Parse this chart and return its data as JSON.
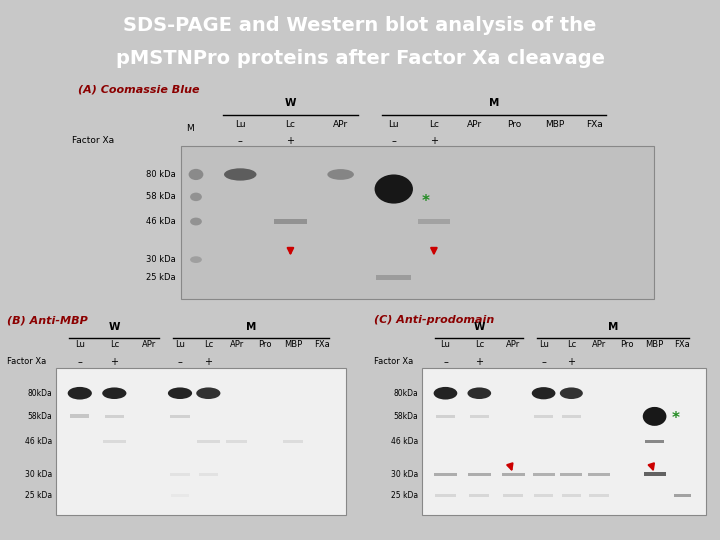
{
  "title_line1": "SDS-PAGE and Western blot analysis of the",
  "title_line2": "pMSTNPro proteins after Factor Xa cleavage",
  "title_bg": "#0d1f5c",
  "title_fg": "#ffffff",
  "slide_bg": "#c8c8c8",
  "content_bg": "#ffffff",
  "label_color": "#8b0000",
  "text_color": "#111111",
  "accent_red": "#cc0000",
  "accent_green": "#228b22",
  "section_A_label": "(A) Coomassie Blue",
  "section_B_label": "(B) Anti-MBP",
  "section_C_label": "(C) Anti-prodomain",
  "mw_labels_A": [
    [
      "80 kDa",
      0.595
    ],
    [
      "58 kDa",
      0.495
    ],
    [
      "46 kDa",
      0.385
    ],
    [
      "30 kDa",
      0.215
    ],
    [
      "25 kDa",
      0.135
    ]
  ],
  "mw_labels_BC": [
    [
      "80kDa",
      0.62
    ],
    [
      "58kDa",
      0.51
    ],
    [
      "46 kDa",
      0.39
    ],
    [
      "30 kDa",
      0.235
    ],
    [
      "25 kDa",
      0.135
    ]
  ]
}
